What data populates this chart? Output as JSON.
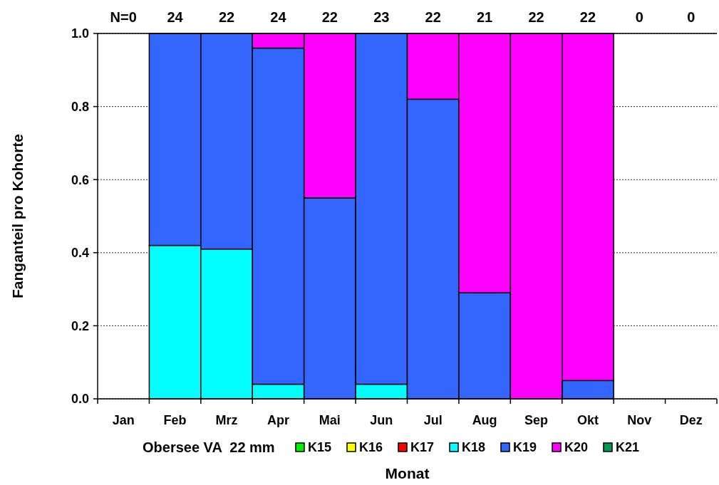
{
  "chart_data": {
    "type": "bar",
    "stacked": true,
    "ylabel": "Fanganteil pro Kohorte",
    "xlabel": "Monat",
    "legend_title": "Obersee VA  22 mm",
    "legend": "bottom",
    "grid": "y",
    "categories": [
      "Jan",
      "Feb",
      "Mrz",
      "Apr",
      "Mai",
      "Jun",
      "Jul",
      "Aug",
      "Sep",
      "Okt",
      "Nov",
      "Dez"
    ],
    "ylim": [
      0,
      1
    ],
    "yticks": [
      {
        "value": 0,
        "label": "0.0"
      },
      {
        "value": 0.2,
        "label": "0.2"
      },
      {
        "value": 0.4,
        "label": "0.4"
      },
      {
        "value": 0.6,
        "label": "0.6"
      },
      {
        "value": 0.8,
        "label": "0.8"
      },
      {
        "value": 1,
        "label": "1.0"
      }
    ],
    "series": [
      {
        "name": "K15",
        "color": "#00ee00",
        "values": [
          0,
          0,
          0,
          0,
          0,
          0,
          0,
          0,
          0,
          0,
          0,
          0
        ]
      },
      {
        "name": "K16",
        "color": "#ffff00",
        "values": [
          0,
          0,
          0,
          0,
          0,
          0,
          0,
          0,
          0,
          0,
          0,
          0
        ]
      },
      {
        "name": "K17",
        "color": "#ff0000",
        "values": [
          0,
          0,
          0,
          0,
          0,
          0,
          0,
          0,
          0,
          0,
          0,
          0
        ]
      },
      {
        "name": "K18",
        "color": "#00ffff",
        "values": [
          0,
          0.42,
          0.41,
          0.04,
          0,
          0.04,
          0,
          0,
          0,
          0,
          0,
          0
        ]
      },
      {
        "name": "K19",
        "color": "#3366ff",
        "values": [
          0,
          0.58,
          0.59,
          0.92,
          0.55,
          0.96,
          0.82,
          0.29,
          0,
          0.05,
          0,
          0
        ]
      },
      {
        "name": "K20",
        "color": "#ff00ff",
        "values": [
          0,
          0,
          0,
          0.04,
          0.45,
          0,
          0.18,
          0.71,
          1,
          0.95,
          0,
          0
        ]
      },
      {
        "name": "K21",
        "color": "#009950",
        "values": [
          0,
          0,
          0,
          0,
          0,
          0,
          0,
          0,
          0,
          0,
          0,
          0
        ]
      }
    ],
    "annotations": [
      "N=0",
      "24",
      "22",
      "24",
      "22",
      "23",
      "22",
      "21",
      "22",
      "22",
      "0",
      "0"
    ]
  }
}
